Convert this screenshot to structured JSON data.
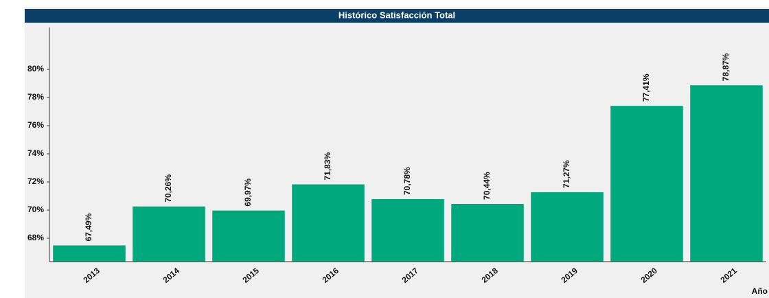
{
  "chart_data": {
    "type": "bar",
    "title": "Histórico Satisfacción Total",
    "x_label": "Año",
    "categories": [
      "2013",
      "2014",
      "2015",
      "2016",
      "2017",
      "2018",
      "2019",
      "2020",
      "2021"
    ],
    "values": [
      67.49,
      70.26,
      69.97,
      71.83,
      70.78,
      70.44,
      71.27,
      77.41,
      78.87
    ],
    "value_labels": [
      "67,49%",
      "70,26%",
      "69,97%",
      "71,83%",
      "70,78%",
      "70,44%",
      "71,27%",
      "77,41%",
      "78,87%"
    ],
    "color": "#00a87e",
    "ylim": [
      66.34,
      82.98
    ],
    "yticks": [
      {
        "value": 68,
        "label": "68%"
      },
      {
        "value": 70,
        "label": "70%"
      },
      {
        "value": 72,
        "label": "72%"
      },
      {
        "value": 74,
        "label": "74%"
      },
      {
        "value": 76,
        "label": "76%"
      },
      {
        "value": 78,
        "label": "78%"
      },
      {
        "value": 80,
        "label": "80%"
      }
    ],
    "grid": false
  }
}
